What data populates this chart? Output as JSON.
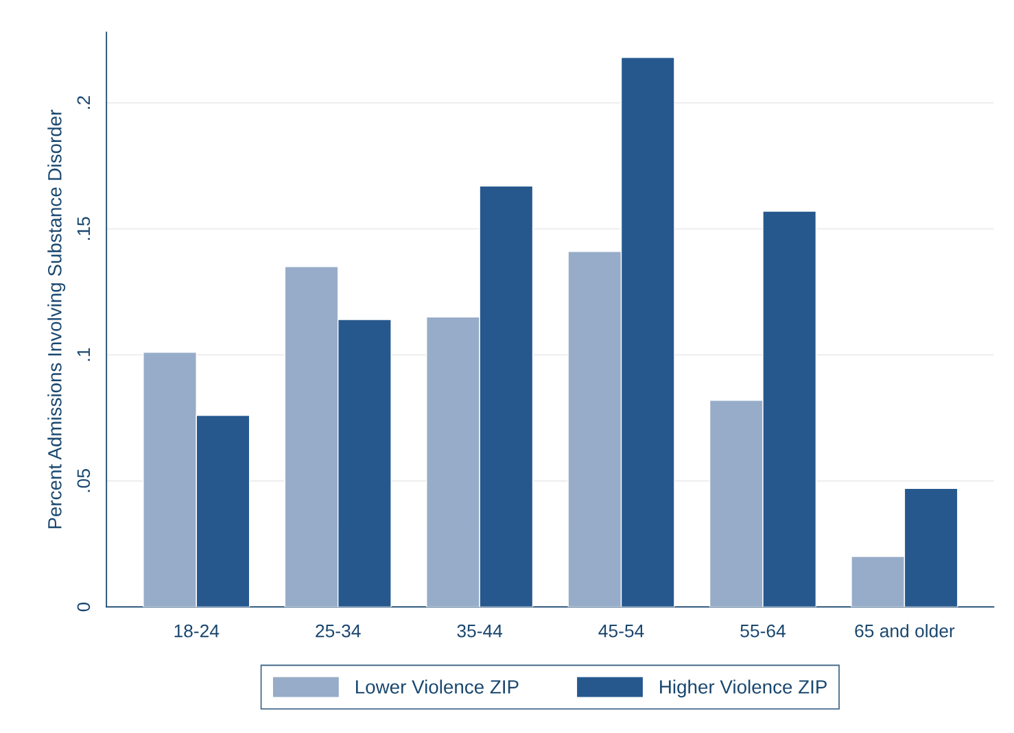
{
  "chart_data": {
    "type": "bar",
    "ylabel": "Percent Admissions Involving Substance Disorder",
    "categories": [
      "18-24",
      "25-34",
      "35-44",
      "45-54",
      "55-64",
      "65 and older"
    ],
    "series": [
      {
        "name": "Lower Violence ZIP",
        "color": "#97acc8",
        "values": [
          0.101,
          0.135,
          0.115,
          0.141,
          0.082,
          0.02
        ]
      },
      {
        "name": "Higher Violence ZIP",
        "color": "#26588e",
        "values": [
          0.076,
          0.114,
          0.167,
          0.218,
          0.157,
          0.047
        ]
      }
    ],
    "ylim": [
      0,
      0.228
    ],
    "yticks": [
      0,
      {
        "value": 0.05,
        "label": ".05"
      },
      {
        "value": 0.1,
        "label": ".1"
      },
      {
        "value": 0.15,
        "label": ".15"
      },
      {
        "value": 0.2,
        "label": ".2"
      }
    ],
    "grid": "y",
    "legend": "bottom"
  }
}
